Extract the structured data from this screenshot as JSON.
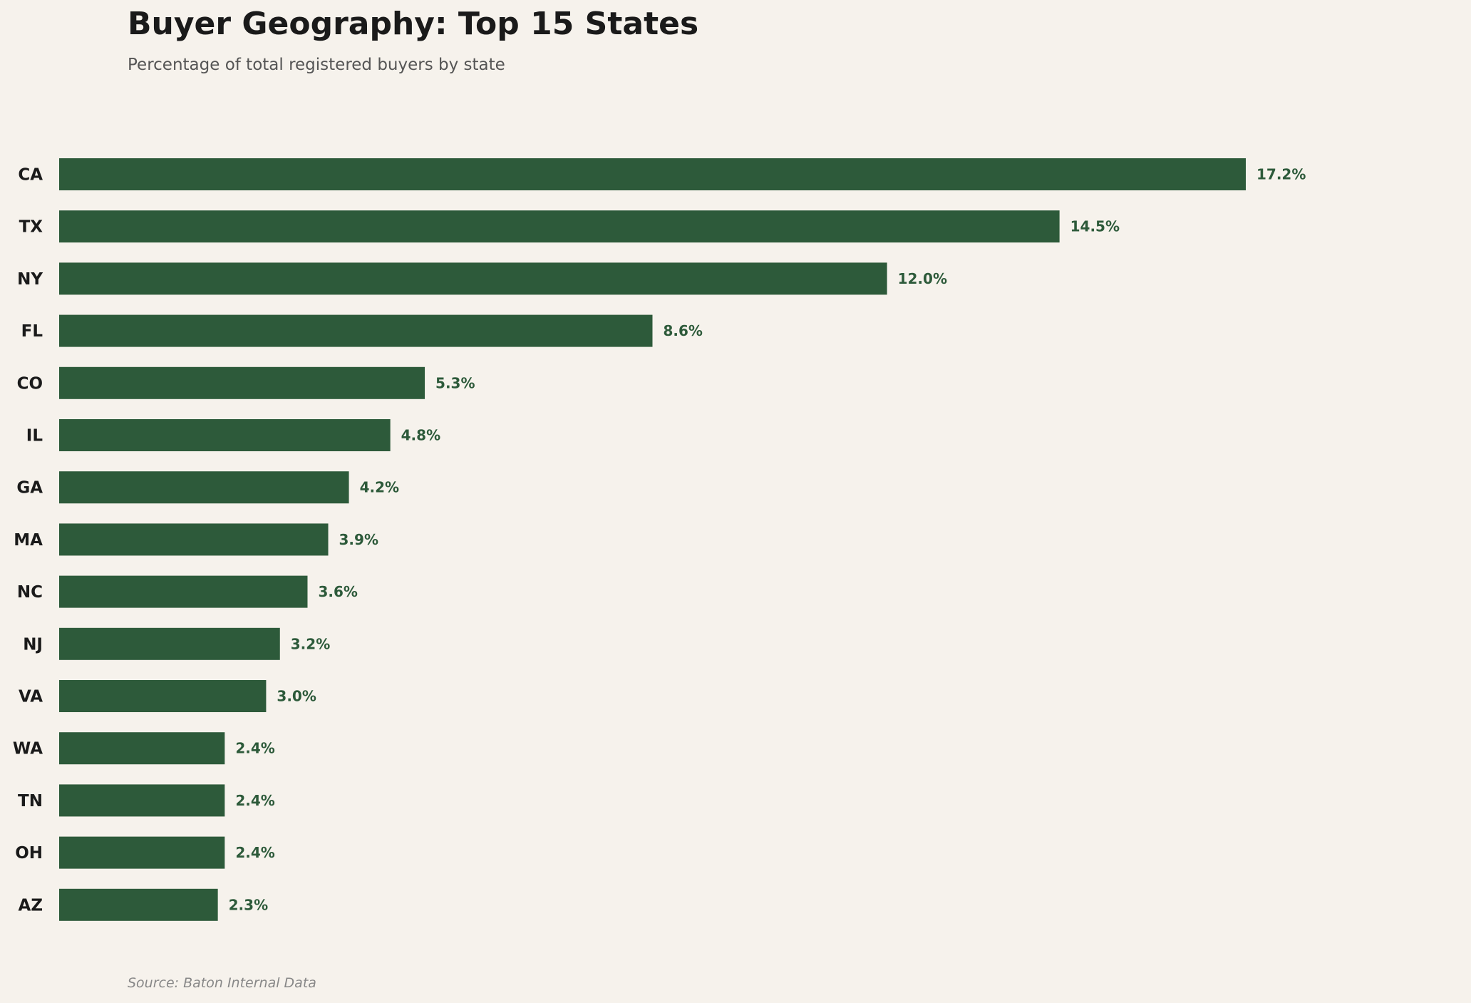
{
  "chart_data": {
    "type": "bar",
    "orientation": "horizontal",
    "title": "Buyer Geography: Top 15 States",
    "subtitle": "Percentage of total registered buyers by state",
    "source": "Source: Baton Internal Data",
    "categories": [
      "CA",
      "TX",
      "NY",
      "FL",
      "CO",
      "IL",
      "GA",
      "MA",
      "NC",
      "NJ",
      "VA",
      "WA",
      "TN",
      "OH",
      "AZ"
    ],
    "values": [
      17.2,
      14.5,
      12.0,
      8.6,
      5.3,
      4.8,
      4.2,
      3.9,
      3.6,
      3.2,
      3.0,
      2.4,
      2.4,
      2.4,
      2.3
    ],
    "value_labels": [
      "17.2%",
      "14.5%",
      "12.0%",
      "8.6%",
      "5.3%",
      "4.8%",
      "4.2%",
      "3.9%",
      "3.6%",
      "3.2%",
      "3.0%",
      "2.4%",
      "2.4%",
      "2.4%",
      "2.3%"
    ],
    "xlabel": "",
    "ylabel": "",
    "xlim": [
      0,
      17.2
    ],
    "grid": false,
    "legend": "none",
    "colors": {
      "bar": "#2d5a3a",
      "background": "#f6f2ec",
      "value_label": "#2d5a3a",
      "category_label": "#1a1a1a"
    }
  }
}
